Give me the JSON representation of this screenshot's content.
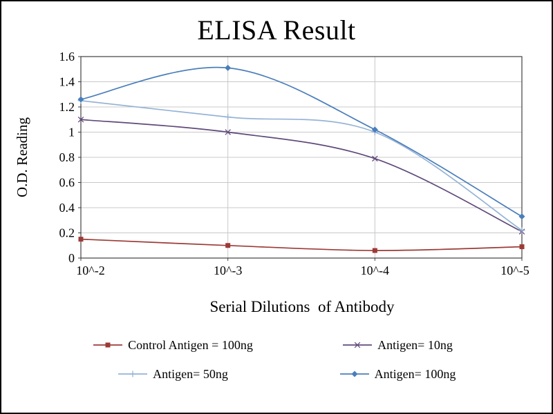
{
  "title": "ELISA Result",
  "chart_data": {
    "type": "line",
    "title": "ELISA Result",
    "xlabel": "Serial Dilutions  of Antibody",
    "ylabel": "O.D. Reading",
    "categories": [
      "10^-2",
      "10^-3",
      "10^-4",
      "10^-5"
    ],
    "ylim": [
      0,
      1.6
    ],
    "ytick_step": 0.2,
    "yticks": [
      "0",
      "0.2",
      "0.4",
      "0.6",
      "0.8",
      "1",
      "1.2",
      "1.4",
      "1.6"
    ],
    "grid": true,
    "legend_position": "bottom",
    "series": [
      {
        "name": "Control Antigen = 100ng",
        "marker": "square",
        "color": "#9c3a36",
        "values": [
          0.15,
          0.1,
          0.06,
          0.09
        ]
      },
      {
        "name": "Antigen= 10ng",
        "marker": "x",
        "color": "#60497a",
        "values": [
          1.1,
          1.0,
          0.79,
          0.21
        ]
      },
      {
        "name": "Antigen= 50ng",
        "marker": "plus",
        "color": "#95b3d7",
        "values": [
          1.25,
          1.12,
          1.0,
          0.22
        ]
      },
      {
        "name": "Antigen= 100ng",
        "marker": "diamond",
        "color": "#4a7ebb",
        "values": [
          1.26,
          1.51,
          1.02,
          0.33
        ]
      }
    ]
  },
  "colors": {
    "background": "#ffffff",
    "frame_border": "#000000",
    "gridline": "#c8c8c8",
    "axis": "#3f3f3f",
    "text": "#000000"
  }
}
